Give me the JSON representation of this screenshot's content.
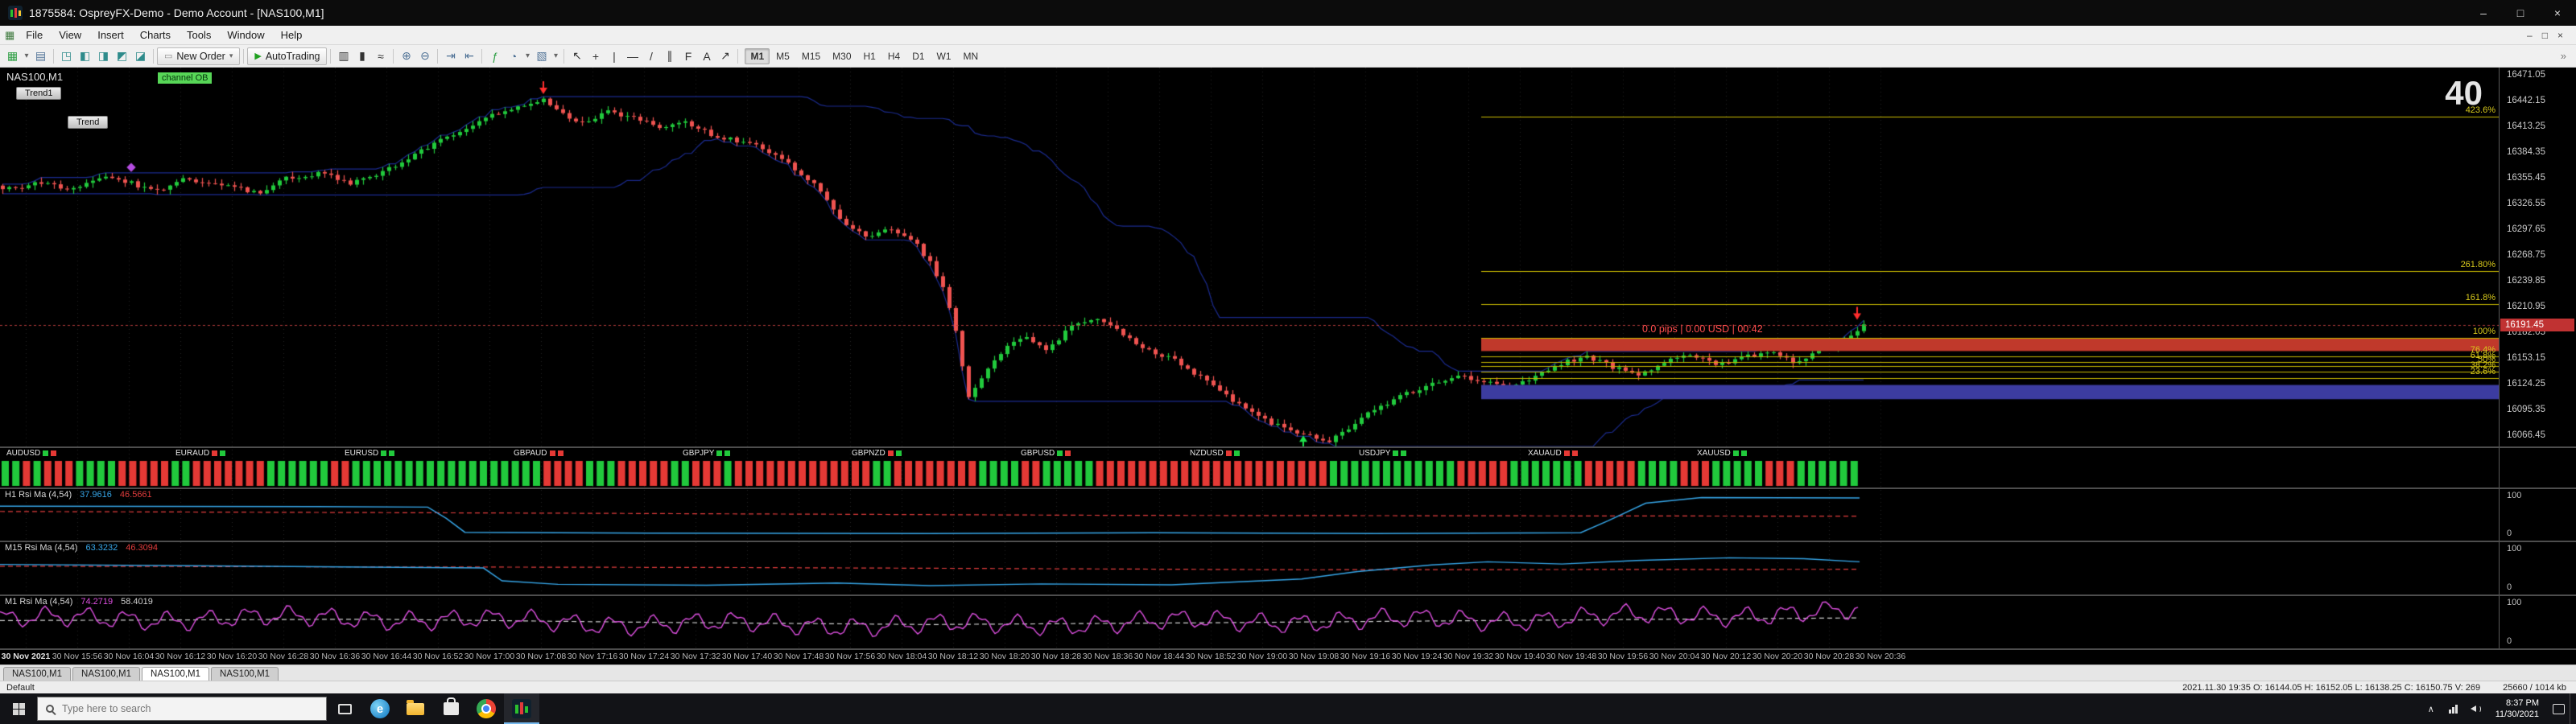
{
  "window": {
    "title": "1875584: OspreyFX-Demo - Demo Account - [NAS100,M1]",
    "controls": {
      "minimize": "–",
      "maximize": "□",
      "close": "×"
    },
    "mdi": {
      "minimize": "–",
      "restore": "□",
      "close": "×"
    }
  },
  "menu": {
    "items": [
      "File",
      "View",
      "Insert",
      "Charts",
      "Tools",
      "Window",
      "Help"
    ]
  },
  "toolbar": {
    "new_order": "New Order",
    "autotrading": "AutoTrading",
    "timeframes": [
      "M1",
      "M5",
      "M15",
      "M30",
      "H1",
      "H4",
      "D1",
      "W1",
      "MN"
    ],
    "active_timeframe": "M1"
  },
  "chart": {
    "symbol": "NAS100,M1",
    "ea_name": "channel OB",
    "button1": "Trend1",
    "button2": "Trend",
    "counter": "40",
    "pips_text": "0.0 pips | 0.00 USD | 00:42",
    "current_price": "16191.45",
    "price_axis": {
      "min": 16055,
      "max": 16480,
      "labels": [
        "16471.05",
        "16442.15",
        "16413.25",
        "16384.35",
        "16355.45",
        "16326.55",
        "16297.65",
        "16268.75",
        "16239.85",
        "16210.95",
        "16182.05",
        "16153.15",
        "16124.25",
        "16095.35",
        "16066.45"
      ]
    },
    "fib_levels": [
      {
        "label": "423.6%",
        "price": 16425
      },
      {
        "label": "261.80%",
        "price": 16252
      },
      {
        "label": "161.8%",
        "price": 16215
      },
      {
        "label": "100%",
        "price": 16177
      },
      {
        "label": "76.4%",
        "price": 16156
      },
      {
        "label": "61.8%",
        "price": 16150
      },
      {
        "label": "50%",
        "price": 16145
      },
      {
        "label": "38.2%",
        "price": 16139
      },
      {
        "label": "23.6%",
        "price": 16132
      }
    ],
    "zones": [
      {
        "type": "sell",
        "from": 16162,
        "to": 16176
      },
      {
        "type": "buy",
        "from": 16108,
        "to": 16124
      }
    ],
    "bars": 290,
    "close_waypoints": [
      [
        0,
        16342
      ],
      [
        6,
        16352
      ],
      [
        10,
        16344
      ],
      [
        16,
        16358
      ],
      [
        20,
        16350
      ],
      [
        24,
        16342
      ],
      [
        28,
        16356
      ],
      [
        34,
        16348
      ],
      [
        40,
        16340
      ],
      [
        44,
        16356
      ],
      [
        50,
        16362
      ],
      [
        54,
        16350
      ],
      [
        58,
        16360
      ],
      [
        64,
        16382
      ],
      [
        70,
        16406
      ],
      [
        76,
        16426
      ],
      [
        82,
        16440
      ],
      [
        84,
        16443
      ],
      [
        87,
        16428
      ],
      [
        90,
        16418
      ],
      [
        94,
        16430
      ],
      [
        98,
        16424
      ],
      [
        102,
        16412
      ],
      [
        106,
        16420
      ],
      [
        110,
        16404
      ],
      [
        114,
        16398
      ],
      [
        118,
        16390
      ],
      [
        122,
        16372
      ],
      [
        126,
        16348
      ],
      [
        130,
        16310
      ],
      [
        134,
        16290
      ],
      [
        138,
        16298
      ],
      [
        142,
        16280
      ],
      [
        144,
        16262
      ],
      [
        146,
        16232
      ],
      [
        148,
        16185
      ],
      [
        150,
        16108
      ],
      [
        153,
        16142
      ],
      [
        156,
        16170
      ],
      [
        159,
        16178
      ],
      [
        162,
        16162
      ],
      [
        166,
        16190
      ],
      [
        170,
        16198
      ],
      [
        174,
        16182
      ],
      [
        178,
        16162
      ],
      [
        182,
        16152
      ],
      [
        186,
        16132
      ],
      [
        190,
        16112
      ],
      [
        194,
        16092
      ],
      [
        198,
        16078
      ],
      [
        202,
        16068
      ],
      [
        206,
        16061
      ],
      [
        209,
        16076
      ],
      [
        212,
        16092
      ],
      [
        215,
        16104
      ],
      [
        218,
        16114
      ],
      [
        222,
        16124
      ],
      [
        226,
        16134
      ],
      [
        230,
        16128
      ],
      [
        234,
        16120
      ],
      [
        238,
        16134
      ],
      [
        242,
        16148
      ],
      [
        246,
        16156
      ],
      [
        250,
        16144
      ],
      [
        254,
        16134
      ],
      [
        258,
        16150
      ],
      [
        262,
        16158
      ],
      [
        266,
        16146
      ],
      [
        270,
        16154
      ],
      [
        274,
        16162
      ],
      [
        278,
        16150
      ],
      [
        282,
        16162
      ],
      [
        286,
        16174
      ],
      [
        289,
        16188
      ],
      [
        290,
        16192
      ]
    ],
    "markers": [
      {
        "type": "sell",
        "bar": 84,
        "price": 16452
      },
      {
        "type": "close",
        "bar": 20,
        "price": 16368
      },
      {
        "type": "buy",
        "bar": 202,
        "price": 16062
      },
      {
        "type": "sell",
        "bar": 288,
        "price": 16199
      }
    ],
    "time_labels": [
      "30 Nov 2021",
      "30 Nov 15:56",
      "30 Nov 16:04",
      "30 Nov 16:12",
      "30 Nov 16:20",
      "30 Nov 16:28",
      "30 Nov 16:36",
      "30 Nov 16:44",
      "30 Nov 16:52",
      "30 Nov 17:00",
      "30 Nov 17:08",
      "30 Nov 17:16",
      "30 Nov 17:24",
      "30 Nov 17:32",
      "30 Nov 17:40",
      "30 Nov 17:48",
      "30 Nov 17:56",
      "30 Nov 18:04",
      "30 Nov 18:12",
      "30 Nov 18:20",
      "30 Nov 18:28",
      "30 Nov 18:36",
      "30 Nov 18:44",
      "30 Nov 18:52",
      "30 Nov 19:00",
      "30 Nov 19:08",
      "30 Nov 19:16",
      "30 Nov 19:24",
      "30 Nov 19:32",
      "30 Nov 19:40",
      "30 Nov 19:48",
      "30 Nov 19:56",
      "30 Nov 20:04",
      "30 Nov 20:12",
      "30 Nov 20:20",
      "30 Nov 20:28",
      "30 Nov 20:36"
    ]
  },
  "strength": {
    "pairs": [
      "AUDUSD",
      "EURAUD",
      "EURUSD",
      "GBPAUD",
      "GBPJPY",
      "GBPNZD",
      "GBPUSD",
      "NZDUSD",
      "USDJPY",
      "XAUAUD",
      "XAUUSD"
    ]
  },
  "indicators": [
    {
      "name": "H1  Rsi Ma (4,54)",
      "value1": "37.9616",
      "value2": "46.5661",
      "scale_top": "100",
      "scale_bottom": "0",
      "line": [
        [
          0,
          68
        ],
        [
          0.17,
          67
        ],
        [
          0.23,
          66
        ],
        [
          0.24,
          40
        ],
        [
          0.25,
          8
        ],
        [
          0.35,
          6
        ],
        [
          0.5,
          5
        ],
        [
          0.62,
          7
        ],
        [
          0.74,
          5
        ],
        [
          0.85,
          7
        ],
        [
          0.865,
          35
        ],
        [
          0.885,
          75
        ],
        [
          0.915,
          88
        ],
        [
          1,
          87
        ]
      ],
      "ma": [
        [
          0,
          56
        ],
        [
          0.3,
          52
        ],
        [
          0.6,
          47
        ],
        [
          1,
          45
        ]
      ]
    },
    {
      "name": "M15  Rsi Ma (4,54)",
      "value1": "63.3232",
      "value2": "46.3094",
      "scale_top": "100",
      "scale_bottom": "0",
      "line": [
        [
          0,
          57
        ],
        [
          0.1,
          54
        ],
        [
          0.2,
          51
        ],
        [
          0.26,
          49
        ],
        [
          0.27,
          20
        ],
        [
          0.3,
          12
        ],
        [
          0.38,
          10
        ],
        [
          0.45,
          15
        ],
        [
          0.5,
          9
        ],
        [
          0.56,
          13
        ],
        [
          0.63,
          11
        ],
        [
          0.7,
          24
        ],
        [
          0.73,
          41
        ],
        [
          0.77,
          56
        ],
        [
          0.8,
          63
        ],
        [
          0.84,
          58
        ],
        [
          0.88,
          66
        ],
        [
          0.93,
          72
        ],
        [
          0.97,
          70
        ],
        [
          1,
          63
        ]
      ],
      "ma": [
        [
          0,
          53
        ],
        [
          0.4,
          50
        ],
        [
          0.7,
          45
        ],
        [
          1,
          46
        ]
      ]
    },
    {
      "name": "M1  Rsi Ma (4,54)",
      "value1": "74.2719",
      "value2": "58.4019",
      "scale_top": "100",
      "scale_bottom": "0",
      "osc": true,
      "base": [
        [
          0,
          55
        ],
        [
          0.2,
          58
        ],
        [
          0.32,
          46
        ],
        [
          0.5,
          41
        ],
        [
          0.65,
          50
        ],
        [
          0.8,
          54
        ],
        [
          1,
          72
        ]
      ],
      "ma": [
        [
          0,
          52
        ],
        [
          0.2,
          55
        ],
        [
          0.35,
          48
        ],
        [
          0.5,
          43
        ],
        [
          0.65,
          47
        ],
        [
          0.8,
          52
        ],
        [
          1,
          58
        ]
      ]
    }
  ],
  "tabs": [
    "NAS100,M1",
    "NAS100,M1",
    "NAS100,M1",
    "NAS100,M1"
  ],
  "active_tab": 2,
  "status": {
    "profile": "Default",
    "ohlc": "2021.11.30 19:35   O: 16144.05   H: 16152.05   L: 16138.25   C: 16150.75   V: 269",
    "traffic": "25660 / 1014 kb"
  },
  "taskbar": {
    "search": "Type here to search",
    "time": "8:37 PM",
    "date": "11/30/2021"
  },
  "colors": {
    "candle_up": "#21c93c",
    "candle_down": "#ef5350",
    "channel": "#1b2b8f",
    "grid": "#242424",
    "fib": "#c9ba00",
    "sell_zone": "#c0392b",
    "buy_zone": "#3c3ca0",
    "rsi_line": "#36a6e8",
    "rsi_ma": "#e03c3c",
    "m1_line": "#dd4fe0",
    "m1_ma": "#cfcfcf",
    "bid": "#b23b3b",
    "strip_up": "#21c93c",
    "strip_down": "#e53935"
  }
}
